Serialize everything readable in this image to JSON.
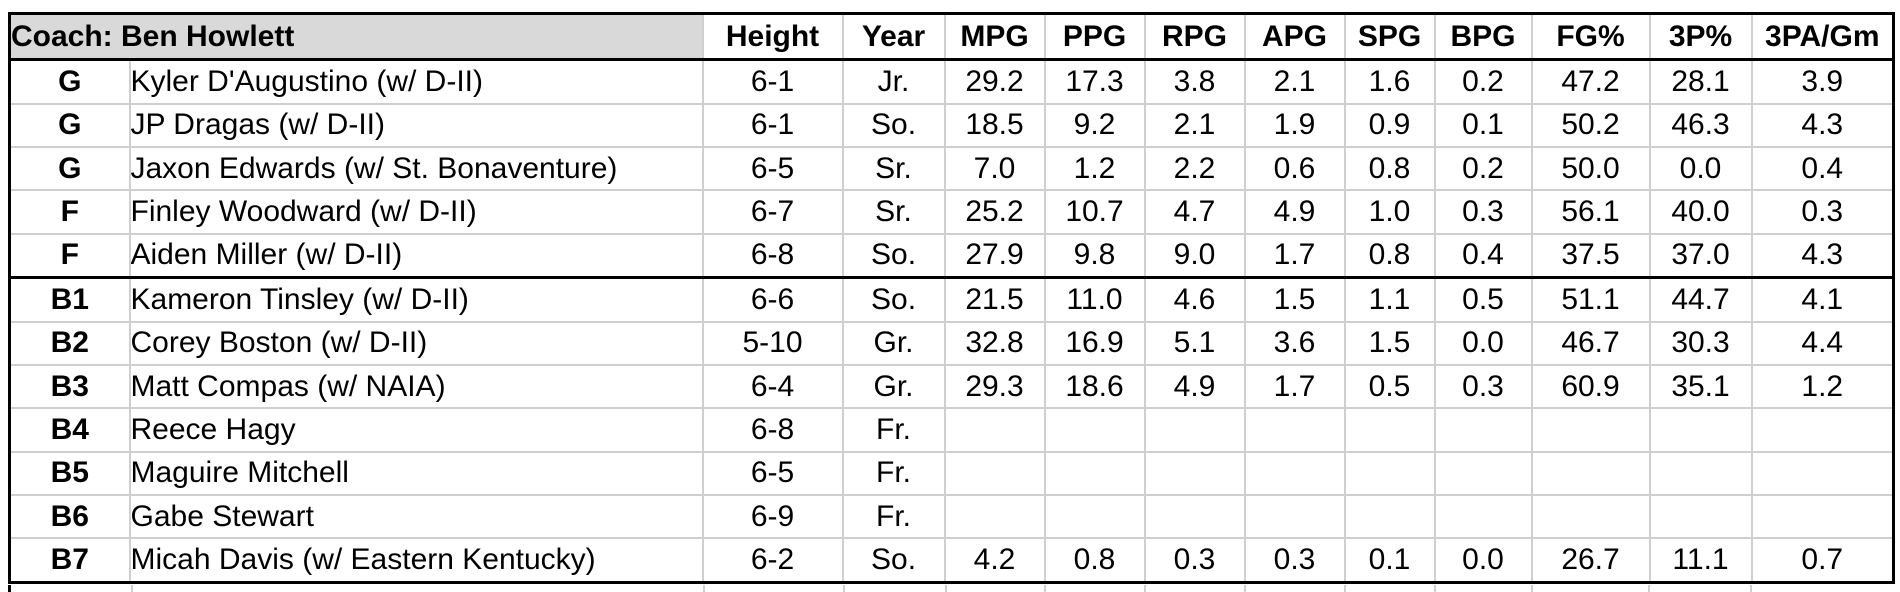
{
  "table": {
    "coach_label": "Coach: Ben Howlett",
    "columns": [
      "Height",
      "Year",
      "MPG",
      "PPG",
      "RPG",
      "APG",
      "SPG",
      "BPG",
      "FG%",
      "3P%",
      "3PA/Gm"
    ],
    "groups": [
      {
        "players": [
          {
            "pos": "G",
            "name": "Kyler D'Augustino (w/ D-II)",
            "height": "6-1",
            "year": "Jr.",
            "stats": [
              "29.2",
              "17.3",
              "3.8",
              "2.1",
              "1.6",
              "0.2",
              "47.2",
              "28.1",
              "3.9"
            ]
          },
          {
            "pos": "G",
            "name": "JP Dragas (w/ D-II)",
            "height": "6-1",
            "year": "So.",
            "stats": [
              "18.5",
              "9.2",
              "2.1",
              "1.9",
              "0.9",
              "0.1",
              "50.2",
              "46.3",
              "4.3"
            ]
          },
          {
            "pos": "G",
            "name": "Jaxon Edwards (w/ St. Bonaventure)",
            "height": "6-5",
            "year": "Sr.",
            "stats": [
              "7.0",
              "1.2",
              "2.2",
              "0.6",
              "0.8",
              "0.2",
              "50.0",
              "0.0",
              "0.4"
            ]
          },
          {
            "pos": "F",
            "name": "Finley Woodward (w/ D-II)",
            "height": "6-7",
            "year": "Sr.",
            "stats": [
              "25.2",
              "10.7",
              "4.7",
              "4.9",
              "1.0",
              "0.3",
              "56.1",
              "40.0",
              "0.3"
            ]
          },
          {
            "pos": "F",
            "name": "Aiden Miller (w/ D-II)",
            "height": "6-8",
            "year": "So.",
            "stats": [
              "27.9",
              "9.8",
              "9.0",
              "1.7",
              "0.8",
              "0.4",
              "37.5",
              "37.0",
              "4.3"
            ]
          }
        ]
      },
      {
        "players": [
          {
            "pos": "B1",
            "name": "Kameron Tinsley (w/ D-II)",
            "height": "6-6",
            "year": "So.",
            "stats": [
              "21.5",
              "11.0",
              "4.6",
              "1.5",
              "1.1",
              "0.5",
              "51.1",
              "44.7",
              "4.1"
            ]
          },
          {
            "pos": "B2",
            "name": "Corey Boston (w/ D-II)",
            "height": "5-10",
            "year": "Gr.",
            "stats": [
              "32.8",
              "16.9",
              "5.1",
              "3.6",
              "1.5",
              "0.0",
              "46.7",
              "30.3",
              "4.4"
            ]
          },
          {
            "pos": "B3",
            "name": "Matt Compas (w/ NAIA)",
            "height": "6-4",
            "year": "Gr.",
            "stats": [
              "29.3",
              "18.6",
              "4.9",
              "1.7",
              "0.5",
              "0.3",
              "60.9",
              "35.1",
              "1.2"
            ]
          },
          {
            "pos": "B4",
            "name": "Reece Hagy",
            "height": "6-8",
            "year": "Fr.",
            "stats": [
              "",
              "",
              "",
              "",
              "",
              "",
              "",
              "",
              ""
            ]
          },
          {
            "pos": "B5",
            "name": "Maguire Mitchell",
            "height": "6-5",
            "year": "Fr.",
            "stats": [
              "",
              "",
              "",
              "",
              "",
              "",
              "",
              "",
              ""
            ]
          },
          {
            "pos": "B6",
            "name": "Gabe Stewart",
            "height": "6-9",
            "year": "Fr.",
            "stats": [
              "",
              "",
              "",
              "",
              "",
              "",
              "",
              "",
              ""
            ]
          },
          {
            "pos": "B7",
            "name": "Micah Davis (w/ Eastern Kentucky)",
            "height": "6-2",
            "year": "So.",
            "stats": [
              "4.2",
              "0.8",
              "0.3",
              "0.3",
              "0.1",
              "0.0",
              "26.7",
              "11.1",
              "0.7"
            ]
          }
        ]
      }
    ],
    "colors": {
      "header_bg": "#d9d9d9",
      "grid": "#cfcfcf",
      "border": "#000000"
    }
  }
}
